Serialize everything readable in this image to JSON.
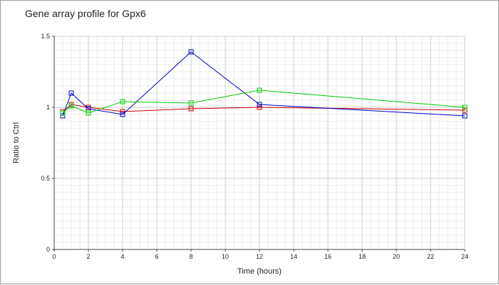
{
  "chart_data": {
    "type": "line",
    "title": "Gene array profile for Gpx6",
    "xlabel": "Time (hours)",
    "ylabel": "Ratio to Ctrl",
    "xlim": [
      0,
      24
    ],
    "ylim": [
      0,
      1.5
    ],
    "x_ticks": [
      "0",
      "2",
      "4",
      "6",
      "8",
      "10",
      "12",
      "14",
      "16",
      "18",
      "20",
      "22",
      "24"
    ],
    "y_ticks": [
      "0",
      "0.5",
      "1",
      "1.5"
    ],
    "grid": true,
    "legend": "none",
    "series": [
      {
        "color": "#cc0000",
        "x": [
          0.5,
          1,
          2,
          4,
          8,
          12,
          24
        ],
        "y": [
          0.97,
          1.02,
          1.0,
          0.97,
          0.99,
          1.0,
          0.98
        ]
      },
      {
        "color": "#0000cc",
        "x": [
          0.5,
          1,
          2,
          4,
          8,
          12,
          24
        ],
        "y": [
          0.94,
          1.1,
          0.99,
          0.95,
          1.39,
          1.02,
          0.94
        ]
      },
      {
        "color": "#00cc00",
        "x": [
          0.5,
          1,
          2,
          4,
          8,
          12,
          24
        ],
        "y": [
          0.96,
          1.01,
          0.96,
          1.04,
          1.03,
          1.12,
          1.0
        ]
      }
    ]
  }
}
